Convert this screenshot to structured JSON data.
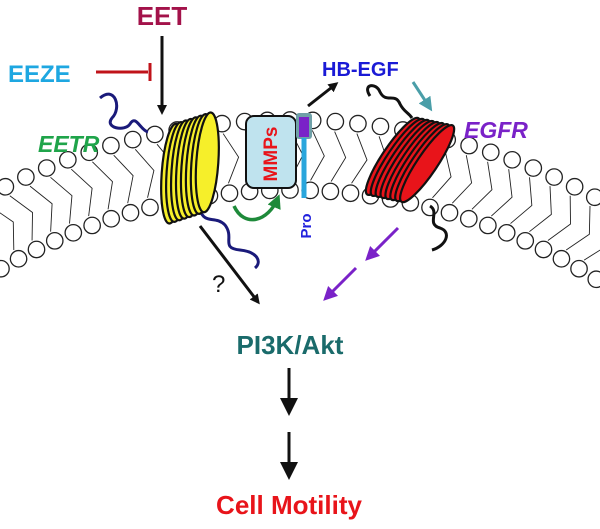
{
  "diagram": {
    "labels": {
      "eet": "EET",
      "eeze": "EEZE",
      "eetr": "EETR",
      "hb_egf": "HB-EGF",
      "egfr": "EGFR",
      "mmps": "MMPs",
      "pro": "Pro",
      "question": "?",
      "pi3k_akt": "PI3K/Akt",
      "cell_motility": "Cell Motility"
    },
    "colors": {
      "eet": "#a3124a",
      "eeze": "#1ea7e1",
      "eetr": "#1fa44a",
      "hb_egf": "#1a1ad6",
      "egfr": "#7a22c8",
      "mmps_text": "#e8141a",
      "mmps_box": "#bfe3ee",
      "pro": "#2222dd",
      "pi3k_akt": "#1a6b6b",
      "cell_motility": "#e8141a",
      "inhibit": "#c0131a",
      "egfr_arrow": "#7a22c8",
      "hb_egf_arrow": "#4a9ea8",
      "mmp_arrow": "#1e8a3a",
      "eetr_helix": "#f6ef2a",
      "egfr_helix": "#e8141a",
      "tail_eetr": "#1a1a7a",
      "tail_egfr": "#111111"
    }
  }
}
